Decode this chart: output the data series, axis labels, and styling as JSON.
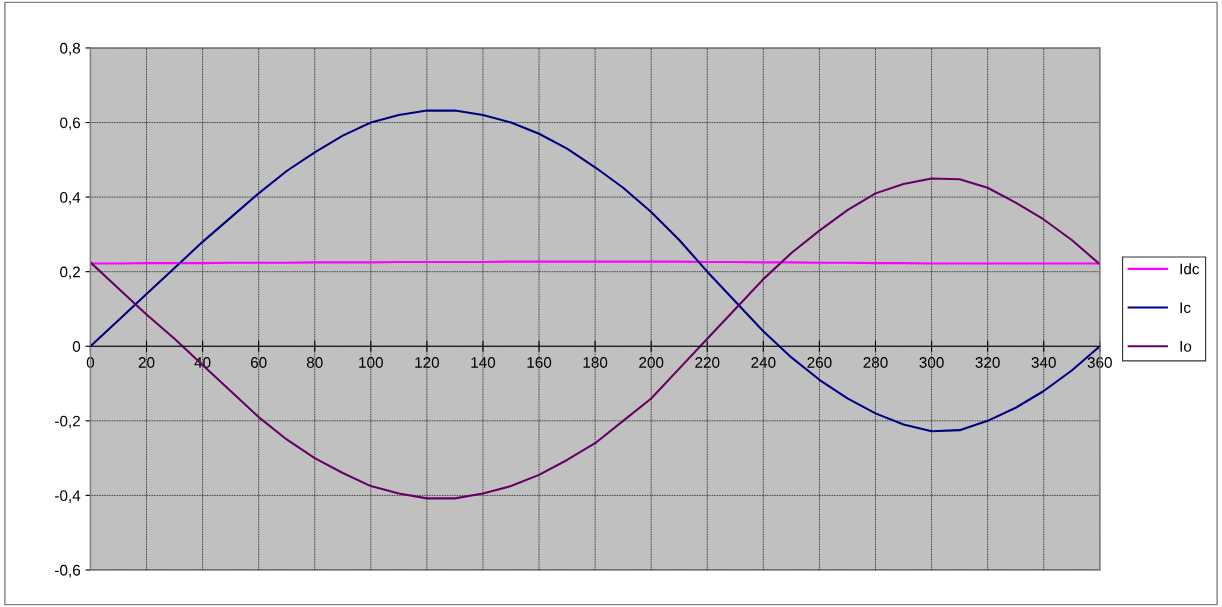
{
  "chart_data": {
    "type": "line",
    "x": [
      0,
      10,
      20,
      30,
      40,
      50,
      60,
      70,
      80,
      90,
      100,
      110,
      120,
      130,
      140,
      150,
      160,
      170,
      180,
      190,
      200,
      210,
      220,
      230,
      240,
      250,
      260,
      270,
      280,
      290,
      300,
      310,
      320,
      330,
      340,
      350,
      360
    ],
    "series": [
      {
        "name": "Idc",
        "color": "#ff00ff",
        "values": [
          0.222,
          0.222,
          0.223,
          0.223,
          0.223,
          0.224,
          0.224,
          0.224,
          0.225,
          0.225,
          0.225,
          0.226,
          0.226,
          0.226,
          0.226,
          0.227,
          0.227,
          0.227,
          0.227,
          0.227,
          0.227,
          0.227,
          0.226,
          0.226,
          0.225,
          0.225,
          0.224,
          0.224,
          0.223,
          0.223,
          0.222,
          0.222,
          0.222,
          0.222,
          0.222,
          0.222,
          0.222
        ]
      },
      {
        "name": "Ic",
        "color": "#000080",
        "values": [
          0,
          0.07,
          0.14,
          0.21,
          0.28,
          0.345,
          0.41,
          0.47,
          0.52,
          0.565,
          0.6,
          0.62,
          0.632,
          0.632,
          0.62,
          0.6,
          0.57,
          0.53,
          0.48,
          0.425,
          0.36,
          0.285,
          0.2,
          0.12,
          0.04,
          -0.03,
          -0.09,
          -0.14,
          -0.18,
          -0.21,
          -0.228,
          -0.225,
          -0.2,
          -0.165,
          -0.12,
          -0.065,
          0
        ]
      },
      {
        "name": "Io",
        "color": "#660066",
        "values": [
          0.225,
          0.155,
          0.085,
          0.02,
          -0.05,
          -0.12,
          -0.19,
          -0.25,
          -0.3,
          -0.34,
          -0.375,
          -0.395,
          -0.408,
          -0.408,
          -0.395,
          -0.375,
          -0.345,
          -0.305,
          -0.26,
          -0.2,
          -0.14,
          -0.06,
          0.02,
          0.1,
          0.18,
          0.25,
          0.31,
          0.365,
          0.41,
          0.435,
          0.45,
          0.448,
          0.425,
          0.385,
          0.34,
          0.285,
          0.22
        ]
      }
    ],
    "xlim": [
      0,
      360
    ],
    "xticks": [
      0,
      20,
      40,
      60,
      80,
      100,
      120,
      140,
      160,
      180,
      200,
      220,
      240,
      260,
      280,
      300,
      320,
      340,
      360
    ],
    "ylim": [
      -0.6,
      0.8
    ],
    "yticks": [
      {
        "value": -0.6,
        "label": "-0,6"
      },
      {
        "value": -0.4,
        "label": "-0,4"
      },
      {
        "value": -0.2,
        "label": "-0,2"
      },
      {
        "value": 0,
        "label": "0"
      },
      {
        "value": 0.2,
        "label": "0,2"
      },
      {
        "value": 0.4,
        "label": "0,4"
      },
      {
        "value": 0.6,
        "label": "0,6"
      },
      {
        "value": 0.8,
        "label": "0,8"
      }
    ],
    "grid": true,
    "legend": "right",
    "marker": "none",
    "line_style": "solid"
  }
}
